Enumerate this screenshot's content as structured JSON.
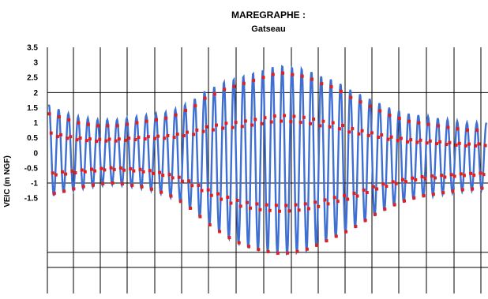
{
  "chart_data": {
    "type": "line",
    "title": "MAREGRAPHE :",
    "subtitle": "Gatseau",
    "ylabel": "VEIC (m NGF)",
    "xlabel": "",
    "y_ticks": [
      "3.5",
      "3",
      "2.5",
      "2",
      "1.5",
      "1",
      "0.5",
      "0",
      "-0.5",
      "-1",
      "-1.5"
    ],
    "ylim": [
      -3.8,
      3.5
    ],
    "grid": true,
    "legend": "none",
    "colors": {
      "observed": "#3f6fd1",
      "predicted": "#e02020",
      "grid": "#000000"
    },
    "series": [
      {
        "style": "line",
        "x": [
          0,
          1,
          2,
          3,
          4,
          5,
          6,
          7,
          8,
          9,
          10,
          11,
          12,
          13,
          14,
          15,
          16,
          17,
          18,
          19,
          20,
          21,
          22,
          23,
          24,
          25,
          26,
          27,
          28,
          29,
          30,
          31,
          32,
          33,
          34,
          35,
          36,
          37,
          38,
          39,
          40,
          41,
          42,
          43,
          44,
          45
        ],
        "high": [
          1.6,
          1.45,
          1.3,
          1.2,
          1.15,
          1.1,
          1.1,
          1.1,
          1.15,
          1.2,
          1.25,
          1.3,
          1.35,
          1.45,
          1.6,
          1.8,
          2.05,
          2.2,
          2.35,
          2.45,
          2.55,
          2.65,
          2.75,
          2.85,
          2.9,
          2.85,
          2.8,
          2.7,
          2.55,
          2.45,
          2.3,
          2.1,
          1.95,
          1.8,
          1.65,
          1.5,
          1.4,
          1.3,
          1.25,
          1.2,
          1.15,
          1.1,
          1.05,
          1.0,
          1.0,
          1.0
        ],
        "low": [
          -1.5,
          -1.35,
          -1.3,
          -1.2,
          -1.15,
          -1.1,
          -1.05,
          -1.05,
          -1.1,
          -1.15,
          -1.2,
          -1.3,
          -1.4,
          -1.55,
          -1.75,
          -2.0,
          -2.3,
          -2.55,
          -2.75,
          -2.95,
          -3.1,
          -3.2,
          -3.3,
          -3.35,
          -3.4,
          -3.35,
          -3.3,
          -3.2,
          -3.05,
          -2.9,
          -2.75,
          -2.6,
          -2.4,
          -2.2,
          -2.0,
          -1.85,
          -1.7,
          -1.6,
          -1.5,
          -1.45,
          -1.4,
          -1.35,
          -1.3,
          -1.25,
          -1.25,
          -1.2
        ]
      },
      {
        "style": "markers",
        "x": [
          0,
          1,
          2,
          3,
          4,
          5,
          6,
          7,
          8,
          9,
          10,
          11,
          12,
          13,
          14,
          15,
          16,
          17,
          18,
          19,
          20,
          21,
          22,
          23,
          24,
          25,
          26,
          27,
          28,
          29,
          30,
          31,
          32,
          33,
          34,
          35,
          36,
          37,
          38,
          39,
          40,
          41,
          42,
          43,
          44,
          45
        ],
        "high": [
          1.3,
          1.2,
          1.1,
          1.0,
          0.95,
          0.9,
          0.9,
          0.9,
          0.95,
          1.0,
          1.05,
          1.1,
          1.15,
          1.25,
          1.4,
          1.55,
          1.8,
          1.95,
          2.1,
          2.2,
          2.3,
          2.4,
          2.5,
          2.6,
          2.65,
          2.6,
          2.55,
          2.45,
          2.3,
          2.2,
          2.05,
          1.85,
          1.7,
          1.55,
          1.4,
          1.25,
          1.15,
          1.05,
          1.0,
          0.95,
          0.9,
          0.85,
          0.8,
          0.75,
          0.75,
          0.75
        ],
        "low": [
          -1.4,
          -1.3,
          -1.25,
          -1.15,
          -1.1,
          -1.05,
          -1.0,
          -1.0,
          -1.05,
          -1.1,
          -1.15,
          -1.25,
          -1.35,
          -1.5,
          -1.7,
          -1.95,
          -2.25,
          -2.5,
          -2.7,
          -2.9,
          -3.05,
          -3.15,
          -3.25,
          -3.3,
          -3.35,
          -3.3,
          -3.25,
          -3.15,
          -3.0,
          -2.85,
          -2.7,
          -2.55,
          -2.35,
          -2.15,
          -1.95,
          -1.8,
          -1.65,
          -1.55,
          -1.45,
          -1.4,
          -1.35,
          -1.3,
          -1.25,
          -1.2,
          -1.2,
          -1.15
        ]
      }
    ]
  }
}
